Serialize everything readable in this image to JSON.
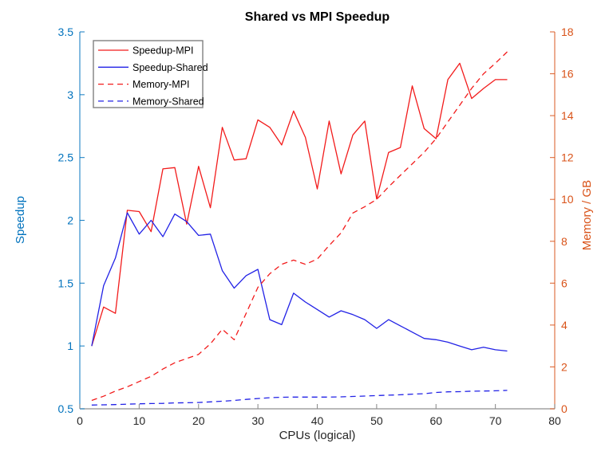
{
  "chart_data": {
    "type": "line",
    "title": "Shared vs MPI Speedup",
    "xlabel": "CPUs (logical)",
    "ylabel_left": "Speedup",
    "ylabel_right": "Memory / GB",
    "xlim": [
      0,
      80
    ],
    "ylim_left": [
      0.5,
      3.5
    ],
    "ylim_right": [
      0,
      18
    ],
    "xticks": [
      0,
      10,
      20,
      30,
      40,
      50,
      60,
      70,
      80
    ],
    "yticks_left": [
      0.5,
      1,
      1.5,
      2,
      2.5,
      3,
      3.5
    ],
    "yticks_right": [
      0,
      2,
      4,
      6,
      8,
      10,
      12,
      14,
      16,
      18
    ],
    "grid": false,
    "legend_position": "top-left",
    "axis_colors": {
      "left": "#0072BD",
      "right": "#D95319",
      "bottom": "#8f8f8f",
      "bottom_text": "#262626"
    },
    "x": [
      2,
      4,
      6,
      8,
      10,
      12,
      14,
      16,
      18,
      20,
      22,
      24,
      26,
      28,
      30,
      32,
      34,
      36,
      38,
      40,
      42,
      44,
      46,
      48,
      50,
      52,
      54,
      56,
      58,
      60,
      62,
      64,
      66,
      68,
      70,
      72
    ],
    "series": [
      {
        "name": "Speedup-MPI",
        "color": "#f21b1b",
        "style": "solid",
        "axis": "left",
        "values": [
          1.0,
          1.31,
          1.26,
          2.08,
          2.07,
          1.91,
          2.41,
          2.42,
          1.97,
          2.43,
          2.1,
          2.74,
          2.48,
          2.49,
          2.8,
          2.74,
          2.6,
          2.87,
          2.66,
          2.25,
          2.79,
          2.37,
          2.68,
          2.79,
          2.17,
          2.54,
          2.58,
          3.07,
          2.73,
          2.65,
          3.12,
          3.25,
          2.97,
          3.05,
          3.12,
          3.12
        ]
      },
      {
        "name": "Speedup-Shared",
        "color": "#2222e6",
        "style": "solid",
        "axis": "left",
        "values": [
          1.0,
          1.48,
          1.7,
          2.06,
          1.89,
          2.0,
          1.87,
          2.05,
          1.99,
          1.88,
          1.89,
          1.6,
          1.46,
          1.56,
          1.61,
          1.21,
          1.17,
          1.42,
          1.35,
          1.29,
          1.23,
          1.28,
          1.25,
          1.21,
          1.14,
          1.21,
          1.16,
          1.11,
          1.06,
          1.05,
          1.03,
          1.0,
          0.97,
          0.99,
          0.97,
          0.96
        ]
      },
      {
        "name": "Memory-MPI",
        "color": "#f21b1b",
        "style": "dashed",
        "axis": "right",
        "values": [
          0.4,
          0.6,
          0.85,
          1.05,
          1.3,
          1.55,
          1.9,
          2.2,
          2.4,
          2.6,
          3.1,
          3.8,
          3.3,
          4.55,
          5.8,
          6.45,
          6.9,
          7.1,
          6.9,
          7.15,
          7.8,
          8.4,
          9.35,
          9.65,
          10.0,
          10.6,
          11.15,
          11.7,
          12.25,
          12.9,
          13.7,
          14.5,
          15.3,
          16.0,
          16.5,
          17.05
        ]
      },
      {
        "name": "Memory-Shared",
        "color": "#2222e6",
        "style": "dashed",
        "axis": "right",
        "values": [
          0.18,
          0.19,
          0.2,
          0.22,
          0.24,
          0.25,
          0.26,
          0.28,
          0.29,
          0.3,
          0.33,
          0.36,
          0.4,
          0.45,
          0.49,
          0.53,
          0.55,
          0.56,
          0.56,
          0.56,
          0.56,
          0.57,
          0.59,
          0.61,
          0.63,
          0.65,
          0.67,
          0.7,
          0.72,
          0.78,
          0.81,
          0.82,
          0.84,
          0.85,
          0.86,
          0.88
        ]
      }
    ]
  }
}
